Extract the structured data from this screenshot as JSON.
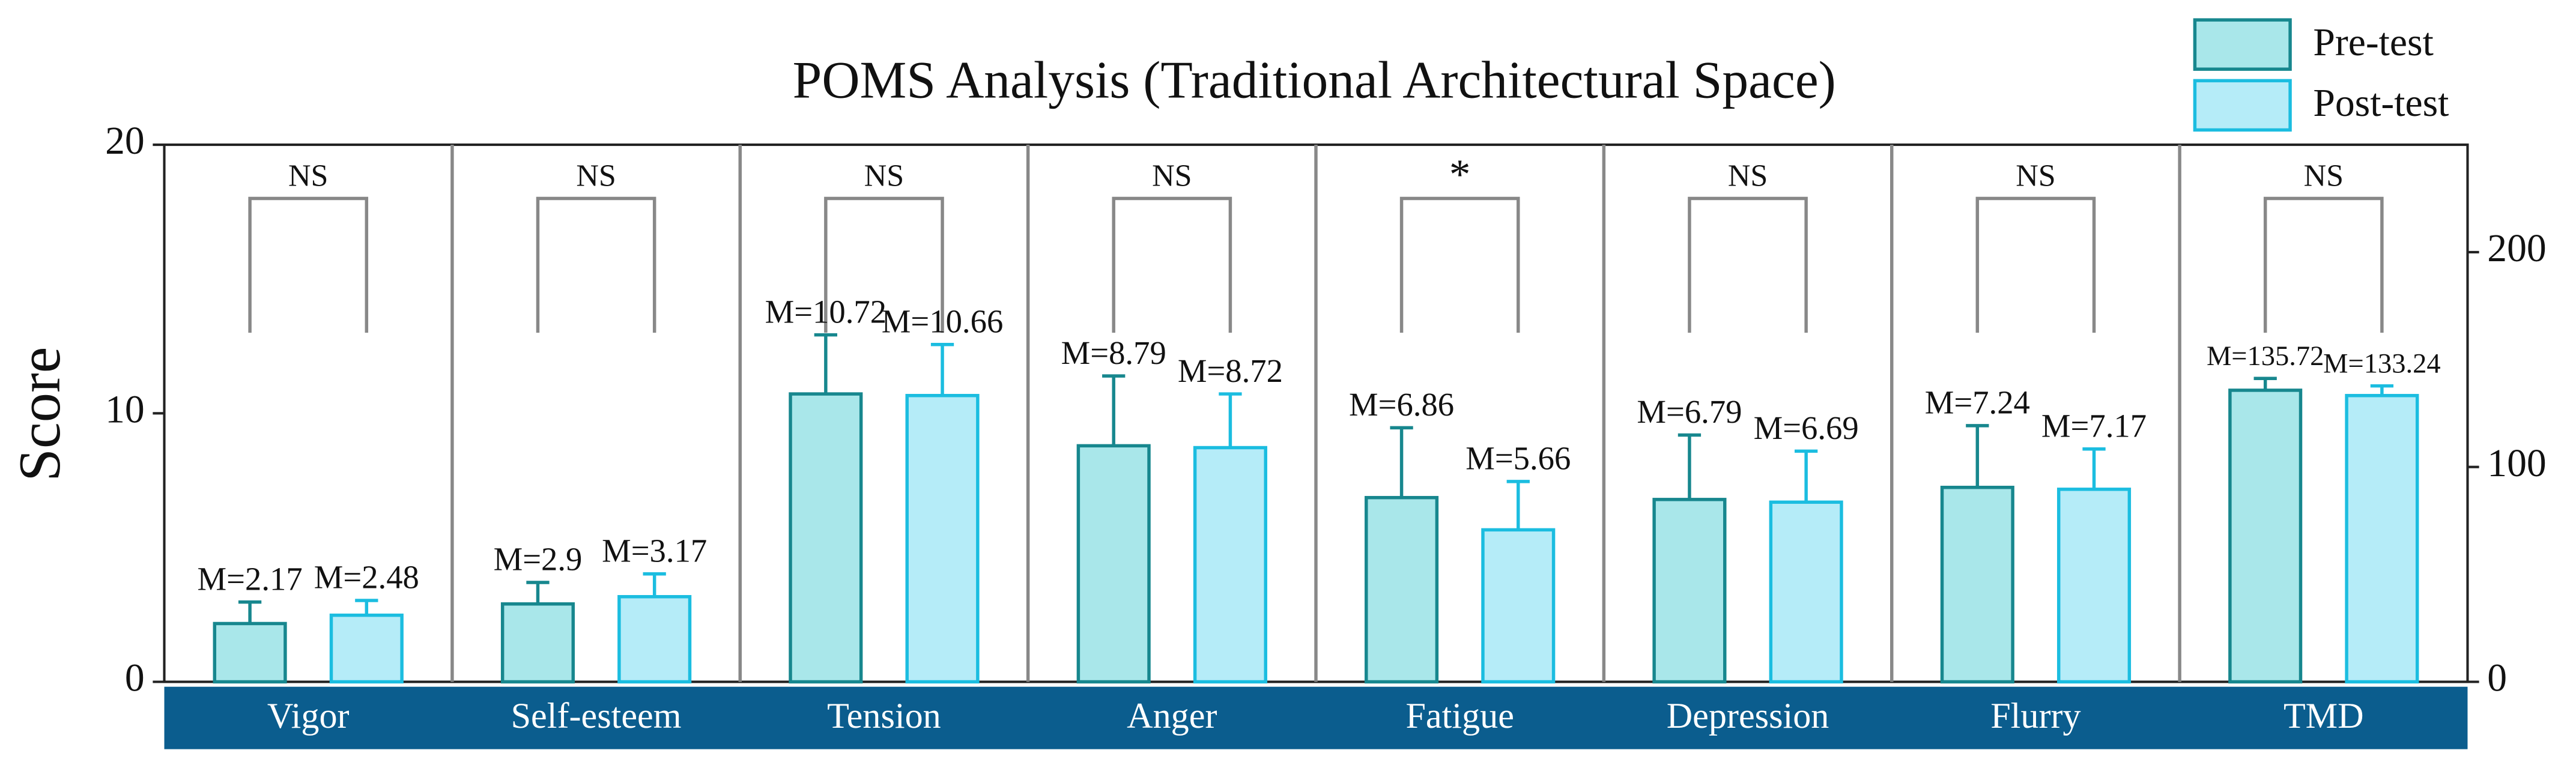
{
  "chart_data": {
    "type": "bar",
    "title": "POMS Analysis (Traditional Architectural Space)",
    "ylabel": "Score",
    "categories": [
      "Vigor",
      "Self-esteem",
      "Tension",
      "Anger",
      "Fatigue",
      "Depression",
      "Flurry",
      "TMD"
    ],
    "y2_categories": [
      "TMD"
    ],
    "series": [
      {
        "name": "Pre-test",
        "color": "#a9e7ea",
        "edge": "#17878e",
        "values": [
          2.17,
          2.9,
          10.72,
          8.79,
          6.86,
          6.79,
          7.24,
          135.72
        ],
        "errors": [
          0.8,
          0.8,
          2.2,
          2.6,
          2.6,
          2.4,
          2.3,
          5.5
        ],
        "value_labels": [
          "M=2.17",
          "M=2.9",
          "M=10.72",
          "M=8.79",
          "M=6.86",
          "M=6.79",
          "M=7.24",
          "M=135.72"
        ]
      },
      {
        "name": "Post-test",
        "color": "#b5ecf8",
        "edge": "#1bbde0",
        "values": [
          2.48,
          3.17,
          10.66,
          8.72,
          5.66,
          6.69,
          7.17,
          133.24
        ],
        "errors": [
          0.55,
          0.85,
          1.9,
          2.0,
          1.8,
          1.9,
          1.5,
          4.5
        ],
        "value_labels": [
          "M=2.48",
          "M=3.17",
          "M=10.66",
          "M=8.72",
          "M=5.66",
          "M=6.69",
          "M=7.17",
          "M=133.24"
        ]
      }
    ],
    "significance": [
      "NS",
      "NS",
      "NS",
      "NS",
      "*",
      "NS",
      "NS",
      "NS"
    ],
    "ylim": [
      0,
      20
    ],
    "yticks": [
      0,
      10,
      20
    ],
    "y2lim": [
      0,
      250
    ],
    "y2ticks": [
      0,
      100,
      200
    ],
    "band_color": "#0b5d8e",
    "legend": "upper right"
  }
}
